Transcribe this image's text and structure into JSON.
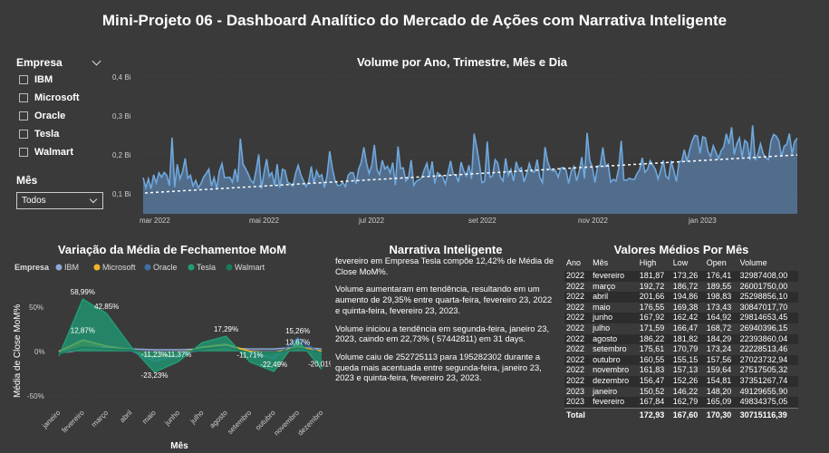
{
  "title": "Mini-Projeto 06 - Dashboard Analítico do Mercado de Ações com Narrativa Inteligente",
  "empresa_slicer": {
    "label": "Empresa",
    "options": [
      "IBM",
      "Microsoft",
      "Oracle",
      "Tesla",
      "Walmart"
    ]
  },
  "mes_slicer": {
    "label": "Mês",
    "value": "Todos"
  },
  "volume_chart": {
    "title": "Volume por Ano, Trimestre, Mês e Dia",
    "y_ticks": [
      "0,4 Bi",
      "0,3 Bi",
      "0,2 Bi",
      "0,1 Bi"
    ],
    "x_ticks": [
      "mar 2022",
      "mai 2022",
      "jul 2022",
      "set 2022",
      "nov 2022",
      "jan 2023"
    ],
    "fill_color": "#5b7fa8",
    "line_color": "#6fa8dc"
  },
  "chart_data": {
    "type": "line",
    "title": "Variação da Média de Fechamentoe MoM",
    "xlabel": "Mês",
    "ylabel": "Média de Close MoM%",
    "legend_title": "Empresa",
    "categories": [
      "janeiro",
      "fevereiro",
      "março",
      "abril",
      "maio",
      "junho",
      "julho",
      "agosto",
      "setembro",
      "outubro",
      "novembro",
      "dezembro"
    ],
    "y_ticks": [
      "50%",
      "0%",
      "-50%"
    ],
    "ylim": [
      -50,
      70
    ],
    "series": [
      {
        "name": "IBM",
        "color": "#8aa9d6",
        "values": [
          -2,
          2,
          5,
          3,
          2,
          2,
          3,
          4,
          3,
          3,
          5,
          3
        ]
      },
      {
        "name": "Microsoft",
        "color": "#f0b429",
        "values": [
          0,
          12.87,
          6,
          2,
          -6,
          -3,
          5,
          8,
          0,
          -2,
          6,
          0
        ]
      },
      {
        "name": "Oracle",
        "color": "#3f6fa8",
        "values": [
          -1,
          4,
          4,
          1,
          -11.23,
          -4,
          2,
          6,
          -2,
          -8,
          15.26,
          -3
        ]
      },
      {
        "name": "Tesla",
        "color": "#1f9e77",
        "values": [
          -5,
          58.99,
          42.85,
          6,
          -23.23,
          -11.37,
          10,
          17.29,
          -11.71,
          -22.49,
          13.67,
          -20.01
        ]
      },
      {
        "name": "Walmart",
        "color": "#1b7a5a",
        "values": [
          -3,
          5,
          3,
          2,
          -4,
          -2,
          3,
          5,
          -1,
          -2,
          4,
          -1
        ]
      }
    ],
    "data_labels": [
      "58,99%",
      "42,85%",
      "12,87%",
      "-23,23%",
      "-11,23%",
      "-11,37%",
      "17,29%",
      "-11,71%",
      "-22,49%",
      "15,26%",
      "13,67%",
      "-20,01%"
    ]
  },
  "narrative": {
    "title": "Narrativa Inteligente",
    "paragraphs": [
      "fevereiro em Empresa Tesla compõe 12,42% de Média de Close MoM%.",
      "Volume aumentaram em tendência, resultando em um aumento de 29,35% entre quarta-feira, fevereiro 23, 2022 e quinta-feira, fevereiro 23, 2023.",
      "Volume iniciou a tendência em segunda-feira, janeiro 23, 2023, caindo em 22,73% ( 57442811) em 31 days.",
      "Volume caiu de 252725113 para 195282302 durante a queda mais acentuada entre segunda-feira, janeiro 23, 2023 e quinta-feira, fevereiro 23, 2023."
    ]
  },
  "values_table": {
    "title": "Valores Médios Por Mês",
    "headers": [
      "Ano",
      "Mês",
      "High",
      "Low",
      "Open",
      "Volume"
    ],
    "rows": [
      [
        "2022",
        "fevereiro",
        "181,87",
        "173,26",
        "176,41",
        "32987408,00"
      ],
      [
        "2022",
        "março",
        "192,72",
        "186,72",
        "189,55",
        "26001750,00"
      ],
      [
        "2022",
        "abril",
        "201,66",
        "194,86",
        "198,83",
        "25298856,10"
      ],
      [
        "2022",
        "maio",
        "176,55",
        "169,38",
        "173,43",
        "30847017,70"
      ],
      [
        "2022",
        "junho",
        "167,92",
        "162,42",
        "164,92",
        "29814653,45"
      ],
      [
        "2022",
        "julho",
        "171,59",
        "166,47",
        "168,72",
        "26940396,15"
      ],
      [
        "2022",
        "agosto",
        "186,22",
        "181,82",
        "184,29",
        "22393860,04"
      ],
      [
        "2022",
        "setembro",
        "175,61",
        "170,79",
        "173,24",
        "22228513,46"
      ],
      [
        "2022",
        "outubro",
        "160,55",
        "155,15",
        "157,56",
        "27023732,94"
      ],
      [
        "2022",
        "novembro",
        "161,83",
        "157,13",
        "159,64",
        "27517505,32"
      ],
      [
        "2022",
        "dezembro",
        "156,47",
        "152,26",
        "154,81",
        "37351267,74"
      ],
      [
        "2023",
        "janeiro",
        "150,52",
        "146,22",
        "148,20",
        "49129655,90"
      ],
      [
        "2023",
        "fevereiro",
        "167,84",
        "162,79",
        "165,09",
        "49834375,05"
      ]
    ],
    "total": [
      "Total",
      "",
      "172,93",
      "167,60",
      "170,30",
      "30715116,39"
    ]
  }
}
